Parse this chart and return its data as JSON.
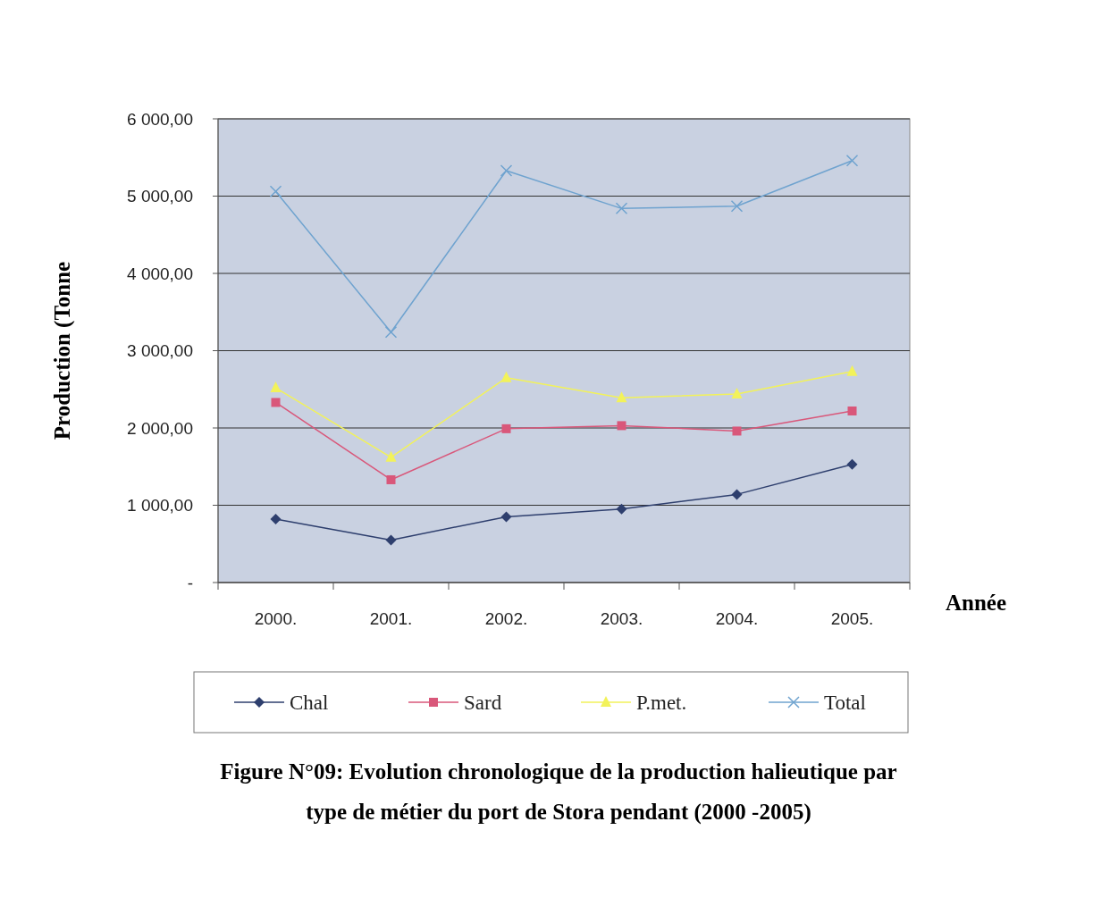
{
  "chart_data": {
    "type": "line",
    "title": "Figure N°09: Evolution chronologique de la production halieutique par type de métier du port de Stora pendant (2000 -2005)",
    "xlabel": "Année",
    "ylabel": "Production (Tonne",
    "categories": [
      "2000.",
      "2001.",
      "2002.",
      "2003.",
      "2004.",
      "2005."
    ],
    "series": [
      {
        "name": "Chal",
        "color": "#2e3f6e",
        "marker": "diamond",
        "values": [
          820,
          550,
          850,
          950,
          1140,
          1530
        ]
      },
      {
        "name": "Sard",
        "color": "#d9577a",
        "marker": "square",
        "values": [
          2330,
          1330,
          1990,
          2030,
          1960,
          2220
        ]
      },
      {
        "name": "P.met.",
        "color": "#f2f25a",
        "marker": "triangle",
        "values": [
          2520,
          1620,
          2650,
          2390,
          2440,
          2730
        ]
      },
      {
        "name": "Total",
        "color": "#6fa3cf",
        "marker": "cross",
        "values": [
          5060,
          3240,
          5330,
          4840,
          4870,
          5460
        ]
      }
    ],
    "ylim": [
      0,
      6000
    ],
    "yticks": [
      {
        "value": 0,
        "label": "-"
      },
      {
        "value": 1000,
        "label": "1 000,00"
      },
      {
        "value": 2000,
        "label": "2 000,00"
      },
      {
        "value": 3000,
        "label": "3 000,00"
      },
      {
        "value": 4000,
        "label": "4 000,00"
      },
      {
        "value": 5000,
        "label": "5 000,00"
      },
      {
        "value": 6000,
        "label": "6 000,00"
      }
    ],
    "grid": "y",
    "legend": "bottom"
  }
}
